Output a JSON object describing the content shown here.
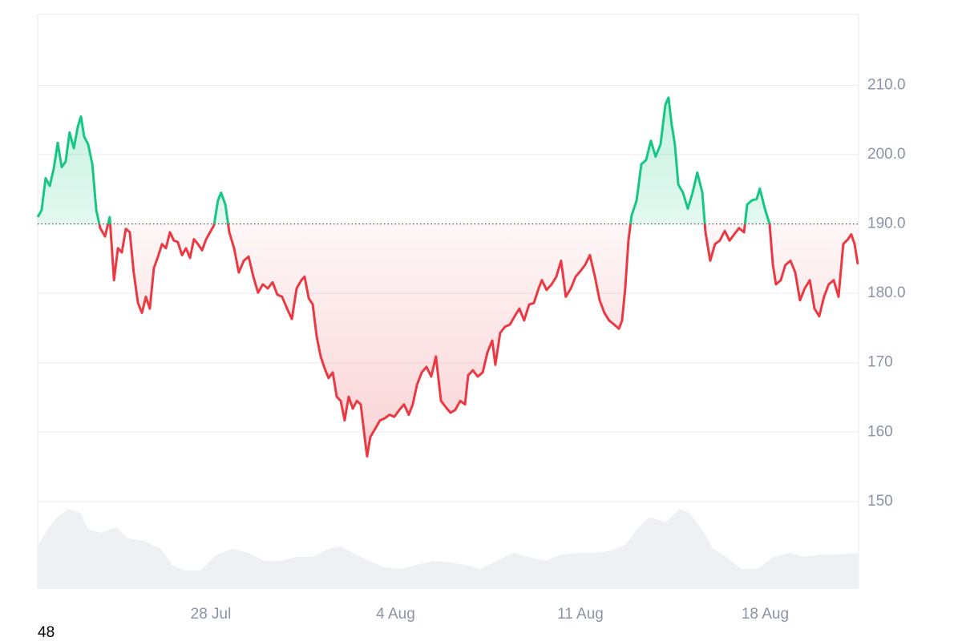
{
  "chart_data": {
    "type": "line",
    "x": [
      -6.56,
      -6.41,
      -6.26,
      -6.1,
      -5.95,
      -5.8,
      -5.65,
      -5.5,
      -5.35,
      -5.19,
      -5.04,
      -4.92,
      -4.8,
      -4.65,
      -4.49,
      -4.34,
      -4.19,
      -4.01,
      -3.83,
      -3.67,
      -3.52,
      -3.37,
      -3.22,
      -3.07,
      -2.92,
      -2.76,
      -2.61,
      -2.46,
      -2.31,
      -2.16,
      -2.0,
      -1.85,
      -1.7,
      -1.55,
      -1.4,
      -1.25,
      -1.09,
      -0.94,
      -0.79,
      -0.64,
      -0.49,
      -0.33,
      -0.18,
      -0.03,
      0.12,
      0.27,
      0.39,
      0.55,
      0.7,
      0.88,
      1.06,
      1.25,
      1.43,
      1.61,
      1.79,
      1.97,
      2.16,
      2.34,
      2.52,
      2.7,
      2.89,
      3.07,
      3.25,
      3.43,
      3.55,
      3.71,
      3.86,
      4.01,
      4.16,
      4.31,
      4.46,
      4.62,
      4.77,
      4.92,
      5.07,
      5.22,
      5.38,
      5.53,
      5.68,
      5.83,
      5.92,
      6.04,
      6.23,
      6.41,
      6.59,
      6.77,
      6.95,
      7.14,
      7.32,
      7.5,
      7.65,
      7.81,
      7.99,
      8.17,
      8.35,
      8.53,
      8.72,
      8.9,
      9.08,
      9.26,
      9.45,
      9.63,
      9.75,
      9.93,
      10.11,
      10.3,
      10.48,
      10.66,
      10.78,
      10.96,
      11.15,
      11.33,
      11.51,
      11.69,
      11.87,
      12.06,
      12.24,
      12.42,
      12.54,
      12.72,
      12.91,
      13.09,
      13.27,
      13.45,
      13.64,
      13.82,
      14.0,
      14.18,
      14.36,
      14.55,
      14.73,
      14.91,
      15.09,
      15.28,
      15.46,
      15.58,
      15.7,
      15.82,
      15.94,
      16.13,
      16.31,
      16.49,
      16.67,
      16.85,
      17.04,
      17.22,
      17.34,
      17.46,
      17.58,
      17.71,
      17.89,
      18.07,
      18.25,
      18.43,
      18.62,
      18.74,
      18.92,
      19.1,
      19.28,
      19.47,
      19.65,
      19.83,
      20.01,
      20.2,
      20.32,
      20.5,
      20.68,
      20.8,
      20.99,
      21.17,
      21.29,
      21.41,
      21.59,
      21.77,
      21.96,
      22.14,
      22.32,
      22.5,
      22.69,
      22.87,
      23.05,
      23.23,
      23.41,
      23.6,
      23.78,
      23.96,
      24.14,
      24.26,
      24.39,
      24.51
    ],
    "values": [
      191.0,
      192,
      196.6,
      195.5,
      198,
      201.7,
      198.2,
      199,
      203.2,
      200.9,
      204,
      205.5,
      202.6,
      201.5,
      198.6,
      192,
      189.4,
      188.2,
      191,
      181.9,
      186.5,
      185.9,
      189.3,
      188.8,
      183,
      178.6,
      177.2,
      179.5,
      177.8,
      183.6,
      185.3,
      187.1,
      186.5,
      188.8,
      187.6,
      187.4,
      185.5,
      186.5,
      185.1,
      187.8,
      187.1,
      186.2,
      187.8,
      188.8,
      189.8,
      193.4,
      194.5,
      192.8,
      188.8,
      186.5,
      183,
      184.7,
      185.3,
      182.4,
      180.1,
      181.3,
      180.7,
      181.6,
      179.8,
      179.5,
      177.8,
      176.3,
      180.7,
      181.9,
      182.4,
      179.3,
      178.4,
      173.8,
      170.9,
      169.2,
      167.8,
      168.6,
      165.1,
      164.5,
      161.7,
      165.1,
      163.4,
      164.5,
      164,
      159.3,
      156.5,
      159.3,
      160.5,
      161.7,
      162,
      162.5,
      162.2,
      163.2,
      164,
      162.5,
      164,
      166.8,
      168.6,
      169.4,
      168,
      170.9,
      164.5,
      163.6,
      162.8,
      163.2,
      164.5,
      164,
      168.2,
      168.9,
      168,
      168.6,
      171.5,
      173.2,
      169.7,
      174.3,
      175.2,
      175.5,
      176.7,
      177.8,
      176.1,
      178.4,
      178.6,
      180.7,
      181.9,
      180.5,
      181.3,
      182.4,
      184.7,
      179.5,
      180.7,
      182.4,
      183.2,
      184.1,
      185.5,
      182.4,
      179,
      177.2,
      176.1,
      175.5,
      174.9,
      176.1,
      180.7,
      187.6,
      191.2,
      193.4,
      198.6,
      199.2,
      202,
      199.7,
      201.5,
      207.2,
      208.2,
      204.3,
      201.5,
      195.7,
      194.5,
      192.2,
      194.5,
      197.4,
      194.5,
      188.8,
      184.7,
      187.1,
      187.6,
      189,
      187.6,
      188.5,
      189.4,
      188.8,
      192.8,
      193.4,
      193.6,
      195.1,
      192.2,
      190,
      184.2,
      181.3,
      181.9,
      184.1,
      184.7,
      183,
      179,
      180.7,
      181.9,
      177.8,
      176.7,
      179.5,
      181.3,
      181.9,
      179.5,
      187.1,
      187.8,
      188.5,
      187.1,
      184.2
    ],
    "baseline": 190,
    "colors": {
      "up": "#16c784",
      "down": "#ea3943"
    },
    "xlim": [
      -6.56,
      24.51
    ],
    "xticks": [
      {
        "value": 0,
        "label": "28 Jul"
      },
      {
        "value": 7,
        "label": "4 Aug"
      },
      {
        "value": 14,
        "label": "11 Aug"
      },
      {
        "value": 21,
        "label": "18 Aug"
      }
    ],
    "ylim": [
      137.4,
      220.2
    ],
    "yticks": [
      150,
      160,
      170,
      {
        "value": 180,
        "label": "180.0"
      },
      {
        "value": 190,
        "label": "190.0"
      },
      {
        "value": 200,
        "label": "200.0"
      },
      {
        "value": 210,
        "label": "210.0"
      }
    ],
    "grid": true,
    "volume": {
      "x": [
        -6.56,
        -6.17,
        -5.8,
        -5.41,
        -4.95,
        -4.65,
        -4.19,
        -3.58,
        -3.13,
        -2.52,
        -1.91,
        -1.46,
        -1.0,
        -0.39,
        0.21,
        0.82,
        1.43,
        2.03,
        2.64,
        3.25,
        3.86,
        4.46,
        4.92,
        5.38,
        5.98,
        6.59,
        7.2,
        7.81,
        8.41,
        9.02,
        9.63,
        10.23,
        10.84,
        11.45,
        12.06,
        12.66,
        13.27,
        13.88,
        14.49,
        15.09,
        15.7,
        16.16,
        16.61,
        17.22,
        17.77,
        18.13,
        18.59,
        19.04,
        19.5,
        20.11,
        20.71,
        21.32,
        21.93,
        22.53,
        23.14,
        23.75,
        24.51
      ],
      "values": [
        55,
        75,
        90,
        100,
        95,
        75,
        70,
        77,
        63,
        60,
        50,
        30,
        23,
        23,
        43,
        50,
        45,
        35,
        35,
        40,
        40,
        50,
        53,
        45,
        35,
        27,
        25,
        30,
        35,
        33,
        30,
        25,
        35,
        45,
        40,
        35,
        43,
        45,
        45,
        47,
        55,
        75,
        90,
        83,
        100,
        95,
        75,
        50,
        40,
        25,
        25,
        40,
        45,
        40,
        43,
        43,
        45
      ],
      "ylim": [
        0,
        100
      ],
      "color": "#eef0f3"
    },
    "footer_text": "48"
  }
}
